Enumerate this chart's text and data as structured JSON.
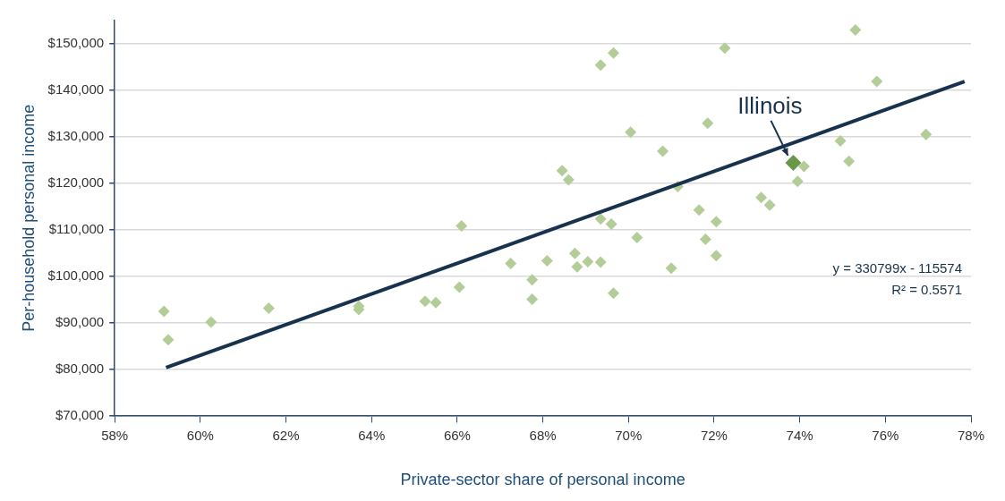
{
  "chart_data": {
    "type": "scatter",
    "xlabel": "Private-sector share of personal income",
    "ylabel": "Per-household personal income",
    "xlim": [
      58,
      78
    ],
    "xticks": [
      {
        "value": 58,
        "label": "58%"
      },
      {
        "value": 60,
        "label": "60%"
      },
      {
        "value": 62,
        "label": "62%"
      },
      {
        "value": 64,
        "label": "64%"
      },
      {
        "value": 66,
        "label": "66%"
      },
      {
        "value": 68,
        "label": "68%"
      },
      {
        "value": 70,
        "label": "70%"
      },
      {
        "value": 72,
        "label": "72%"
      },
      {
        "value": 74,
        "label": "74%"
      },
      {
        "value": 76,
        "label": "76%"
      },
      {
        "value": 78,
        "label": "78%"
      }
    ],
    "ylim": [
      70000,
      155000
    ],
    "yticks": [
      {
        "value": 70000,
        "label": "$70,000"
      },
      {
        "value": 80000,
        "label": "$80,000"
      },
      {
        "value": 90000,
        "label": "$90,000"
      },
      {
        "value": 100000,
        "label": "$100,000"
      },
      {
        "value": 110000,
        "label": "$110,000"
      },
      {
        "value": 120000,
        "label": "$120,000"
      },
      {
        "value": 130000,
        "label": "$130,000"
      },
      {
        "value": 140000,
        "label": "$140,000"
      },
      {
        "value": 150000,
        "label": "$150,000"
      }
    ],
    "grid": "y",
    "legend": false,
    "marker": "diamond",
    "series": [
      {
        "color": "#b3cd98",
        "x": [
          59.15,
          59.25,
          60.25,
          61.6,
          63.7,
          63.7,
          65.25,
          65.5,
          66.05,
          66.1,
          67.25,
          67.75,
          67.75,
          68.1,
          68.45,
          68.6,
          68.75,
          68.8,
          69.05,
          69.35,
          69.35,
          69.35,
          69.6,
          69.65,
          69.65,
          70.05,
          70.2,
          70.8,
          71.0,
          71.15,
          71.65,
          71.8,
          71.85,
          72.05,
          72.05,
          72.25,
          73.1,
          73.3,
          73.95,
          74.1,
          74.95,
          75.15,
          75.3,
          75.8,
          76.95
        ],
        "values": [
          92400,
          86300,
          90100,
          93100,
          93500,
          92800,
          94600,
          94300,
          97600,
          110800,
          102700,
          99200,
          95000,
          103300,
          122700,
          120700,
          104900,
          102000,
          103100,
          112300,
          103000,
          145400,
          111200,
          148000,
          96300,
          131000,
          108300,
          126900,
          101700,
          119300,
          114200,
          107900,
          132900,
          111700,
          104400,
          149100,
          116900,
          115300,
          120400,
          123600,
          129100,
          124700,
          153000,
          141900,
          130500
        ]
      },
      {
        "type": "scatter",
        "color": "#6a9848",
        "x": [
          73.85
        ],
        "values": [
          124400
        ]
      },
      {
        "type": "line",
        "color": "#17324d",
        "marker": "none",
        "x": [
          59.2,
          77.85
        ],
        "values": [
          80300,
          141900
        ]
      }
    ],
    "annotations": [
      {
        "text": "Illinois",
        "x": 73.85,
        "y": 124400
      },
      "y = 330799x - 115574",
      "R² = 0.5571"
    ]
  }
}
